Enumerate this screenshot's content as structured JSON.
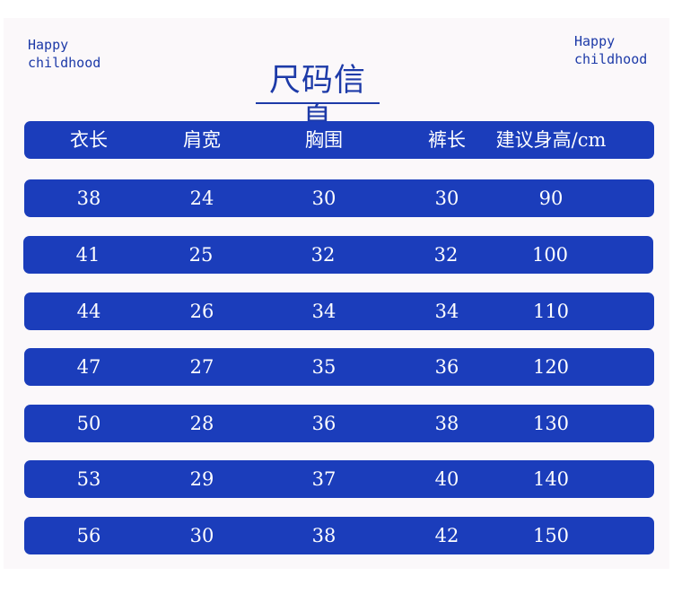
{
  "brand": {
    "left": {
      "line1": "Happy",
      "line2": "childhood"
    },
    "right": {
      "line1": "Happy",
      "line2": "childhood"
    }
  },
  "title": "尺码信息",
  "table": {
    "headers": [
      "衣长",
      "肩宽",
      "胸围",
      "裤长",
      "建议身高/cm"
    ],
    "rows": [
      [
        "38",
        "24",
        "30",
        "30",
        "90"
      ],
      [
        "41",
        "25",
        "32",
        "32",
        "100"
      ],
      [
        "44",
        "26",
        "34",
        "34",
        "110"
      ],
      [
        "47",
        "27",
        "35",
        "36",
        "120"
      ],
      [
        "50",
        "28",
        "36",
        "38",
        "130"
      ],
      [
        "53",
        "29",
        "37",
        "40",
        "140"
      ],
      [
        "56",
        "30",
        "38",
        "42",
        "150"
      ]
    ]
  },
  "colors": {
    "accent": "#1b3dbb",
    "text_accent": "#1d3aa8",
    "panel": "#fbf8fa"
  }
}
